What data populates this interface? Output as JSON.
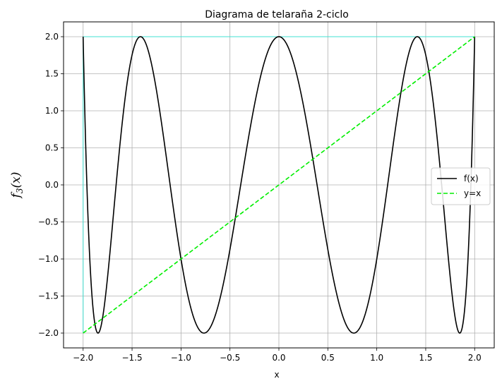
{
  "chart_data": {
    "type": "line",
    "title": "Diagrama de telaraña 2-ciclo",
    "xlabel": "x",
    "ylabel": "f_3(x)",
    "ylabel_base": "f",
    "ylabel_sub": "3",
    "ylabel_arg": "(x)",
    "xlim": [
      -2.2,
      2.2
    ],
    "ylim": [
      -2.2,
      2.2
    ],
    "xticks": [
      -2.0,
      -1.5,
      -1.0,
      -0.5,
      0.0,
      0.5,
      1.0,
      1.5,
      2.0
    ],
    "yticks": [
      -2.0,
      -1.5,
      -1.0,
      -0.5,
      0.0,
      0.5,
      1.0,
      1.5,
      2.0
    ],
    "xtick_labels": [
      "−2.0",
      "−1.5",
      "−1.0",
      "−0.5",
      "0.0",
      "0.5",
      "1.0",
      "1.5",
      "2.0"
    ],
    "ytick_labels": [
      "−2.0",
      "−1.5",
      "−1.0",
      "−0.5",
      "0.0",
      "0.5",
      "1.0",
      "1.5",
      "2.0"
    ],
    "grid": true,
    "legend_position": "right",
    "series": [
      {
        "name": "f(x)",
        "function": "x^8 - 8x^6 + 20x^4 - 16x^2 + 2",
        "x_range": [
          -2,
          2
        ],
        "color": "#000000",
        "style": "solid"
      },
      {
        "name": "y=x",
        "x": [
          -2,
          2
        ],
        "y": [
          -2,
          2
        ],
        "color": "#00ee00",
        "style": "dashed"
      }
    ],
    "cobweb_series": [
      {
        "color": "#40e0d0",
        "start_x": -2.0,
        "iterations": 10
      },
      {
        "color": "#ff1493",
        "start_x": 2.0,
        "iterations": 10
      }
    ]
  }
}
